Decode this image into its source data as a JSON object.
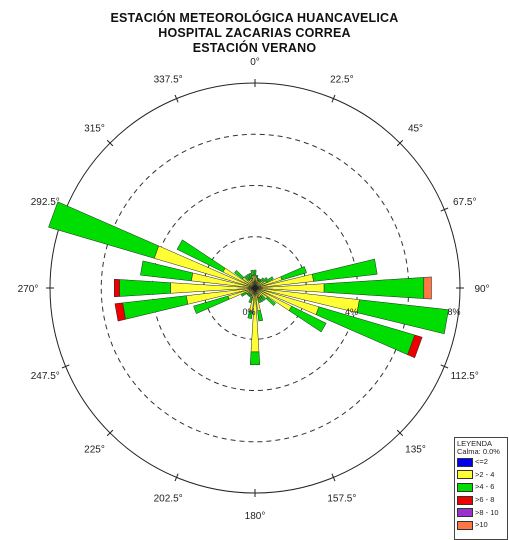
{
  "header": {
    "title_line1": "ESTACIÓN METEOROLÓGICA HUANCAVELICA",
    "title_line2": "HOSPITAL ZACARIAS CORREA",
    "title_line3": "ESTACIÓN VERANO"
  },
  "legend": {
    "title": "LEYENDA",
    "calm": "Calma: 0.0%",
    "items": [
      {
        "label": "<=2",
        "color": "#0000ee"
      },
      {
        "label": ">2 - 4",
        "color": "#ffff33"
      },
      {
        "label": ">4 - 6",
        "color": "#00dd00"
      },
      {
        "label": ">6 - 8",
        "color": "#ee0000"
      },
      {
        "label": ">8 - 10",
        "color": "#9933cc"
      },
      {
        "label": ">10",
        "color": "#ff7744"
      }
    ]
  },
  "chart_data": {
    "type": "wind-rose",
    "directions": [
      "0°",
      "22.5°",
      "45°",
      "67.5°",
      "90°",
      "112.5°",
      "135°",
      "157.5°",
      "180°",
      "202.5°",
      "225°",
      "247.5°",
      "270°",
      "292.5°",
      "315°",
      "337.5°"
    ],
    "ring_labels": [
      "0%",
      "4%",
      "8%"
    ],
    "rmax": 8,
    "speed_classes": [
      "<=2",
      ">2 - 4",
      ">4 - 6",
      ">6 - 8",
      ">8 - 10",
      ">10"
    ],
    "colors": [
      "#0000ee",
      "#ffff33",
      "#00dd00",
      "#ee0000",
      "#9933cc",
      "#ff7744"
    ],
    "sectors": [
      {
        "dir": 0,
        "values": [
          0.15,
          0.35,
          0.2,
          0,
          0,
          0
        ]
      },
      {
        "dir": 10,
        "values": [
          0.1,
          0.3,
          0.1,
          0,
          0,
          0
        ]
      },
      {
        "dir": 20,
        "values": [
          0.1,
          0.2,
          0.1,
          0,
          0,
          0
        ]
      },
      {
        "dir": 30,
        "values": [
          0.1,
          0.2,
          0.1,
          0,
          0,
          0
        ]
      },
      {
        "dir": 40,
        "values": [
          0.1,
          0.2,
          0.2,
          0,
          0,
          0
        ]
      },
      {
        "dir": 50,
        "values": [
          0.1,
          0.3,
          0.2,
          0,
          0,
          0
        ]
      },
      {
        "dir": 60,
        "values": [
          0.1,
          0.4,
          0.3,
          0,
          0,
          0
        ]
      },
      {
        "dir": 70,
        "values": [
          0.1,
          1.0,
          1.0,
          0,
          0,
          0
        ]
      },
      {
        "dir": 80,
        "values": [
          0.1,
          2.2,
          2.5,
          0,
          0,
          0
        ]
      },
      {
        "dir": 90,
        "values": [
          0.1,
          2.6,
          3.9,
          0,
          0,
          0.3
        ]
      },
      {
        "dir": 100,
        "values": [
          0.1,
          4.0,
          3.5,
          0,
          0,
          0
        ]
      },
      {
        "dir": 110,
        "values": [
          0.1,
          2.5,
          3.9,
          0.3,
          0,
          0
        ]
      },
      {
        "dir": 120,
        "values": [
          0.1,
          1.5,
          1.5,
          0,
          0,
          0
        ]
      },
      {
        "dir": 130,
        "values": [
          0.1,
          0.5,
          0.4,
          0,
          0,
          0
        ]
      },
      {
        "dir": 140,
        "values": [
          0.1,
          0.3,
          0.2,
          0,
          0,
          0
        ]
      },
      {
        "dir": 150,
        "values": [
          0.1,
          0.3,
          0.2,
          0,
          0,
          0
        ]
      },
      {
        "dir": 160,
        "values": [
          0.1,
          0.3,
          0.2,
          0,
          0,
          0
        ]
      },
      {
        "dir": 170,
        "values": [
          0.1,
          0.8,
          0.4,
          0,
          0,
          0
        ]
      },
      {
        "dir": 180,
        "values": [
          0.1,
          2.4,
          0.5,
          0,
          0,
          0
        ]
      },
      {
        "dir": 190,
        "values": [
          0.1,
          0.8,
          0.3,
          0,
          0,
          0
        ]
      },
      {
        "dir": 200,
        "values": [
          0.1,
          0.3,
          0.2,
          0,
          0,
          0
        ]
      },
      {
        "dir": 210,
        "values": [
          0.1,
          0.2,
          0.1,
          0,
          0,
          0
        ]
      },
      {
        "dir": 220,
        "values": [
          0.1,
          0.2,
          0.1,
          0,
          0,
          0
        ]
      },
      {
        "dir": 230,
        "values": [
          0.1,
          0.2,
          0.1,
          0,
          0,
          0
        ]
      },
      {
        "dir": 240,
        "values": [
          0.1,
          0.3,
          0.2,
          0,
          0,
          0
        ]
      },
      {
        "dir": 250,
        "values": [
          0.1,
          1.0,
          1.4,
          0,
          0,
          0
        ]
      },
      {
        "dir": 260,
        "values": [
          0.1,
          2.6,
          2.5,
          0.3,
          0,
          0
        ]
      },
      {
        "dir": 270,
        "values": [
          0.1,
          3.2,
          2.0,
          0.2,
          0,
          0
        ]
      },
      {
        "dir": 280,
        "values": [
          0.1,
          2.4,
          2.0,
          0,
          0,
          0
        ]
      },
      {
        "dir": 290,
        "values": [
          0.1,
          4.0,
          4.3,
          0,
          0,
          0
        ]
      },
      {
        "dir": 300,
        "values": [
          0.1,
          1.3,
          2.0,
          0,
          0,
          0
        ]
      },
      {
        "dir": 310,
        "values": [
          0.1,
          0.5,
          0.4,
          0,
          0,
          0
        ]
      },
      {
        "dir": 320,
        "values": [
          0.1,
          0.3,
          0.2,
          0,
          0,
          0
        ]
      },
      {
        "dir": 330,
        "values": [
          0.1,
          0.3,
          0.2,
          0,
          0,
          0
        ]
      },
      {
        "dir": 340,
        "values": [
          0.1,
          0.3,
          0.2,
          0,
          0,
          0
        ]
      },
      {
        "dir": 350,
        "values": [
          0.1,
          0.4,
          0.2,
          0,
          0,
          0
        ]
      }
    ]
  }
}
